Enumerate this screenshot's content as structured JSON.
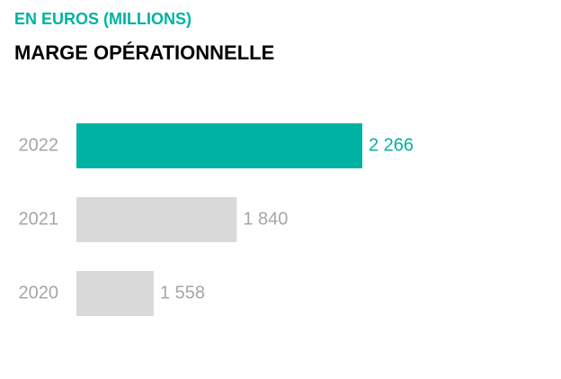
{
  "chart_data": {
    "type": "hbar",
    "subtitle": "EN EUROS (MILLIONS)",
    "title": "MARGE OPÉRATIONNELLE",
    "categories": [
      "2022",
      "2021",
      "2020"
    ],
    "values": [
      2266,
      1840,
      1558
    ],
    "value_labels": [
      "2 266",
      "1 840",
      "1 558"
    ],
    "colors": [
      "#00b2a2",
      "#d9d9d9",
      "#d9d9d9"
    ],
    "label_colors": [
      "#00b2a2",
      "#a6a6a6",
      "#a6a6a6"
    ],
    "xlim": [
      1296,
      2266
    ]
  }
}
